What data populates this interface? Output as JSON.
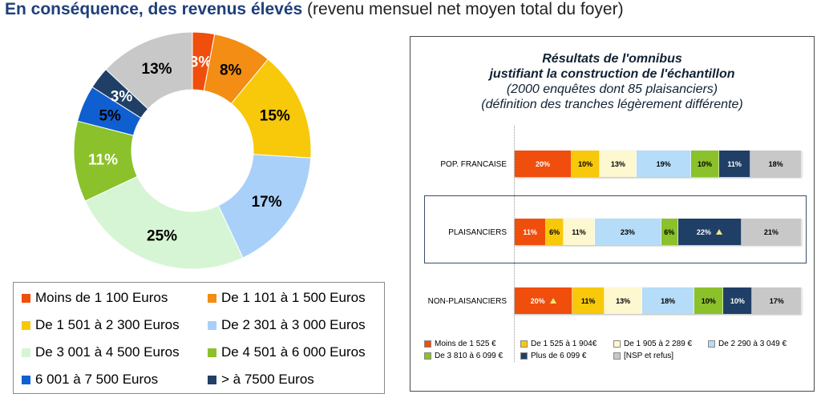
{
  "title": {
    "bold": "En conséquence, des revenus élevés",
    "rest": " (revenu mensuel net moyen total du foyer)"
  },
  "chart_data": [
    {
      "type": "pie",
      "values": [
        3,
        8,
        15,
        17,
        25,
        11,
        5,
        3,
        13
      ],
      "labels": [
        "3%",
        "8%",
        "15%",
        "17%",
        "25%",
        "11%",
        "5%",
        "3%",
        "13%"
      ],
      "categories": [
        "Moins de 1 100 Euros",
        "De 1 101 à 1 500 Euros",
        "De 1 501 à 2 300 Euros",
        "De 2 301 à 3 000 Euros",
        "De 3 001 à 4 500 Euros",
        "De 4 501 à 6 000 Euros",
        "6 001 à 7 500 Euros",
        "> à 7500 Euros",
        ""
      ],
      "colors": [
        "#f04e0c",
        "#f38d13",
        "#f8c80a",
        "#a9d0f8",
        "#d6f5d4",
        "#8bc12a",
        "#0f5fd1",
        "#203f66",
        "#c8c8c8"
      ],
      "label_colors": [
        "#ffffff",
        "#000000",
        "#000000",
        "#000000",
        "#000000",
        "#ffffff",
        "#000000",
        "#ffffff",
        "#000000"
      ],
      "legend": [
        "Moins de 1 100 Euros",
        "De 1 101 à 1 500 Euros",
        "De 1 501 à 2 300 Euros",
        "De 2 301 à 3 000 Euros",
        "De 3 001 à 4 500 Euros",
        "De 4 501 à 6 000 Euros",
        "6 001 à 7 500 Euros",
        "> à 7500 Euros"
      ],
      "legend_colors": [
        "#f04e0c",
        "#f38d13",
        "#f8c80a",
        "#a9d0f8",
        "#d6f5d4",
        "#8bc12a",
        "#0f5fd1",
        "#203f66"
      ]
    },
    {
      "type": "bar",
      "stacked": true,
      "orientation": "horizontal",
      "title_lines": [
        "Résultats de l'omnibus",
        "justifiant la construction de l'échantillon"
      ],
      "subtitle_lines": [
        "(2000 enquêtes dont 85 plaisanciers)",
        "(définition des tranches légèrement différente)"
      ],
      "categories": [
        "POP. FRANCAISE",
        "PLAISANCIERS",
        "NON-PLAISANCIERS"
      ],
      "series": [
        {
          "name": "Moins de 1 525 €",
          "color": "#f04e0c",
          "text_color": "#ffffff",
          "values": [
            20,
            11,
            20
          ],
          "labels": [
            "20%",
            "11%",
            "20%"
          ],
          "flags": [
            false,
            false,
            true
          ]
        },
        {
          "name": "De 1 525 à 1 904€",
          "color": "#f8c80a",
          "text_color": "#000000",
          "values": [
            10,
            6,
            11
          ],
          "labels": [
            "10%",
            "6%",
            "11%"
          ],
          "flags": [
            false,
            false,
            false
          ]
        },
        {
          "name": "De 1 905 à 2 289 €",
          "color": "#fdf8d0",
          "text_color": "#000000",
          "values": [
            13,
            11,
            13
          ],
          "labels": [
            "13%",
            "11%",
            "13%"
          ],
          "flags": [
            false,
            false,
            false
          ]
        },
        {
          "name": "De 2 290 à 3 049 €",
          "color": "#b5dcf8",
          "text_color": "#000000",
          "values": [
            19,
            23,
            18
          ],
          "labels": [
            "19%",
            "23%",
            "18%"
          ],
          "flags": [
            false,
            false,
            false
          ]
        },
        {
          "name": "De 3 810 à 6 099 €",
          "color": "#8bc12a",
          "text_color": "#000000",
          "values": [
            10,
            6,
            10
          ],
          "labels": [
            "10%",
            "6%",
            "10%"
          ],
          "flags": [
            false,
            false,
            false
          ]
        },
        {
          "name": "Plus de 6 099 €",
          "color": "#203f66",
          "text_color": "#ffffff",
          "values": [
            11,
            22,
            10
          ],
          "labels": [
            "11%",
            "22%",
            "10%"
          ],
          "flags": [
            false,
            true,
            false
          ]
        },
        {
          "name": "[NSP et refus]",
          "color": "#c8c8c8",
          "text_color": "#000000",
          "values": [
            18,
            21,
            17
          ],
          "labels": [
            "18%",
            "21%",
            "17%"
          ],
          "flags": [
            false,
            false,
            false
          ]
        }
      ]
    }
  ]
}
